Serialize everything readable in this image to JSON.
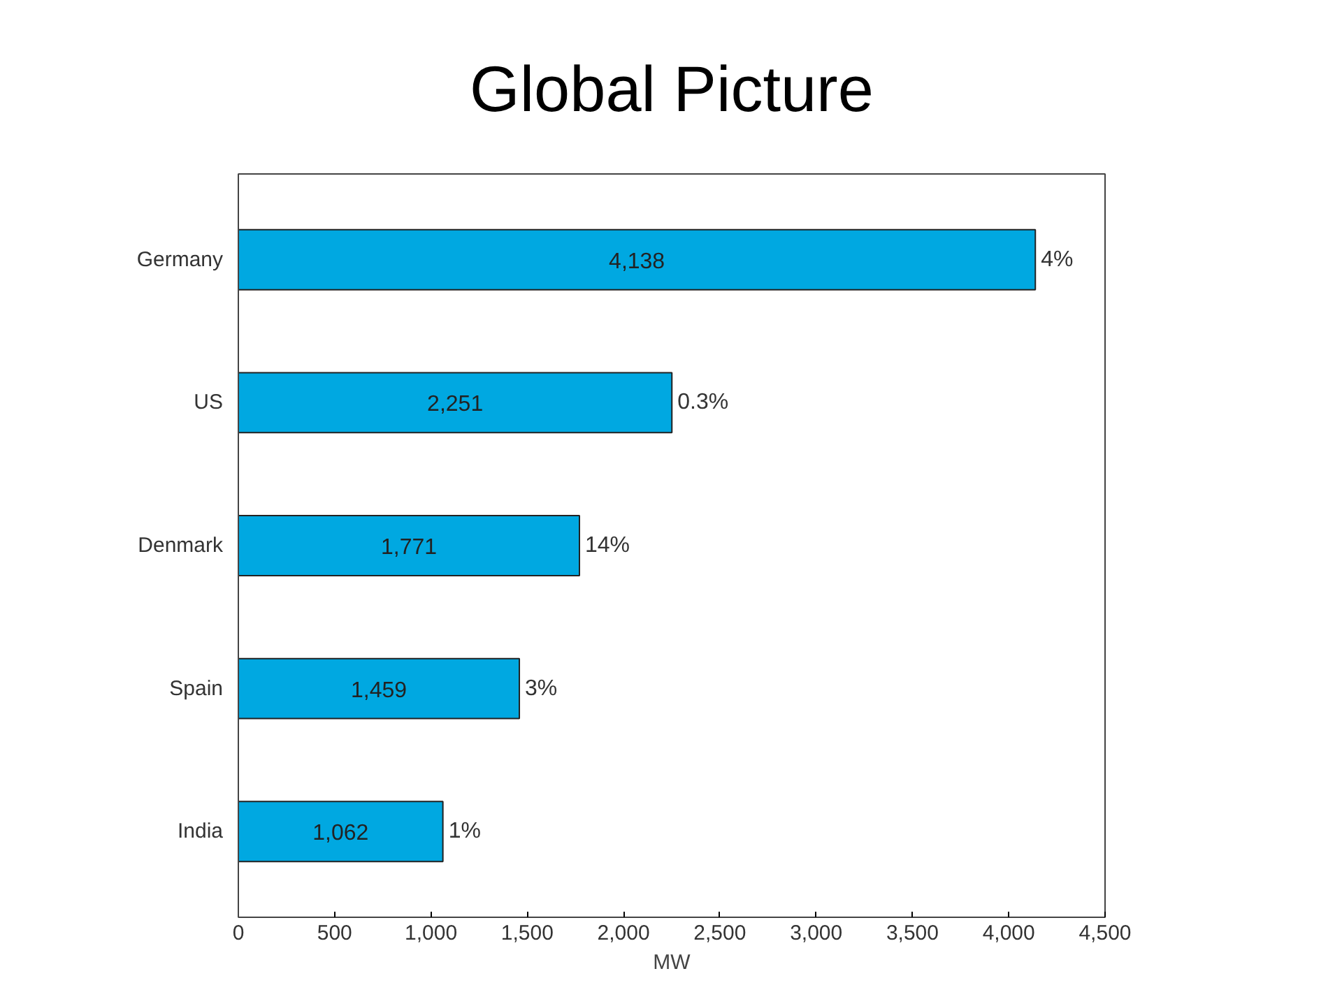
{
  "chart_data": {
    "type": "bar",
    "orientation": "horizontal",
    "title": "Global Picture",
    "xlabel": "MW",
    "categories": [
      "Germany",
      "US",
      "Denmark",
      "Spain",
      "India"
    ],
    "values": [
      4138,
      2251,
      1771,
      1459,
      1062
    ],
    "value_labels": [
      "4,138",
      "2,251",
      "1,771",
      "1,459",
      "1,062"
    ],
    "color": "#00a8e1",
    "xlim": [
      0,
      4500
    ],
    "xticks": [
      0,
      500,
      {
        "value": 1000,
        "label": "1,000"
      },
      {
        "value": 1500,
        "label": "1,500"
      },
      {
        "value": 2000,
        "label": "2,000"
      },
      {
        "value": 2500,
        "label": "2,500"
      },
      {
        "value": 3000,
        "label": "3,000"
      },
      {
        "value": 3500,
        "label": "3,500"
      },
      {
        "value": 4000,
        "label": "4,000"
      },
      {
        "value": 4500,
        "label": "4,500"
      }
    ],
    "annotations": [
      {
        "text": "4%",
        "x": 4138,
        "y": "Germany"
      },
      {
        "text": "0.3%",
        "x": 2251,
        "y": "US"
      },
      {
        "text": "14%",
        "x": 1771,
        "y": "Denmark"
      },
      {
        "text": "3%",
        "x": 1459,
        "y": "Spain"
      },
      {
        "text": "1%",
        "x": 1062,
        "y": "India"
      }
    ],
    "grid": false
  }
}
